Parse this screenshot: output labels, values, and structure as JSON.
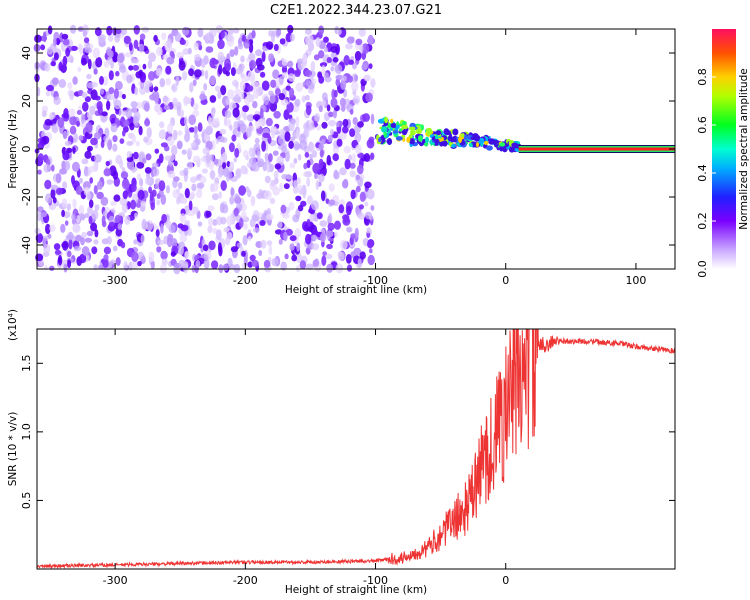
{
  "title": "C2E1.2022.344.23.07.G21",
  "chart_data": [
    {
      "type": "heatmap",
      "xlabel": "Height of straight line (km)",
      "ylabel": "Frequency (Hz)",
      "xlim": [
        -360,
        130
      ],
      "ylim": [
        -50,
        50
      ],
      "x_ticks": [
        -300,
        -200,
        -100,
        0,
        100
      ],
      "y_ticks": [
        -40,
        -20,
        0,
        20,
        40
      ],
      "colorbar": {
        "label": "Normalized spectral amplitude",
        "range": [
          0.0,
          1.0
        ],
        "ticks": [
          "0.0",
          "0.2",
          "0.4",
          "0.6",
          "0.8"
        ],
        "colormap": "rainbow (white → violet → blue → cyan → green → yellow → red)"
      },
      "regions": [
        {
          "x_range": [
            -360,
            -100
          ],
          "freq_range": [
            -50,
            50
          ],
          "amplitude": "0.0-0.2",
          "description": "broadband diffuse speckle"
        },
        {
          "x_range": [
            -100,
            10
          ],
          "freq_center_start": 8,
          "freq_center_end": 1,
          "amplitude": "0.2-1.0",
          "description": "narrowing band converging to 0 Hz"
        },
        {
          "x_range": [
            10,
            130
          ],
          "freq_center": 0,
          "amplitude": 1.0,
          "description": "steady narrow line at 0 Hz"
        }
      ],
      "grid": false
    },
    {
      "type": "line",
      "xlabel": "Height of straight line (km)",
      "ylabel": "SNR (10 * v/v)",
      "scale_label": "(x10⁴)",
      "xlim": [
        -360,
        130
      ],
      "ylim": [
        0,
        1.75
      ],
      "x_ticks": [
        -300,
        -200,
        -100,
        0
      ],
      "y_ticks": [
        "0.5",
        "1.0",
        "1.5"
      ],
      "color": "#ee3333",
      "series": [
        {
          "x": [
            -360,
            -300,
            -200,
            -150,
            -100,
            -80,
            -60,
            -50,
            -40,
            -30,
            -25,
            -20,
            -15,
            -10,
            -5,
            0,
            5,
            10,
            15,
            20,
            25,
            30,
            40,
            60,
            80,
            90,
            100,
            110,
            120,
            130
          ],
          "y": [
            0.02,
            0.03,
            0.05,
            0.05,
            0.06,
            0.08,
            0.15,
            0.25,
            0.35,
            0.45,
            0.55,
            0.7,
            0.85,
            0.9,
            1.05,
            1.15,
            1.3,
            1.4,
            1.5,
            1.58,
            1.62,
            1.64,
            1.66,
            1.66,
            1.65,
            1.64,
            1.62,
            1.61,
            1.6,
            1.59
          ]
        }
      ],
      "grid": false
    }
  ]
}
